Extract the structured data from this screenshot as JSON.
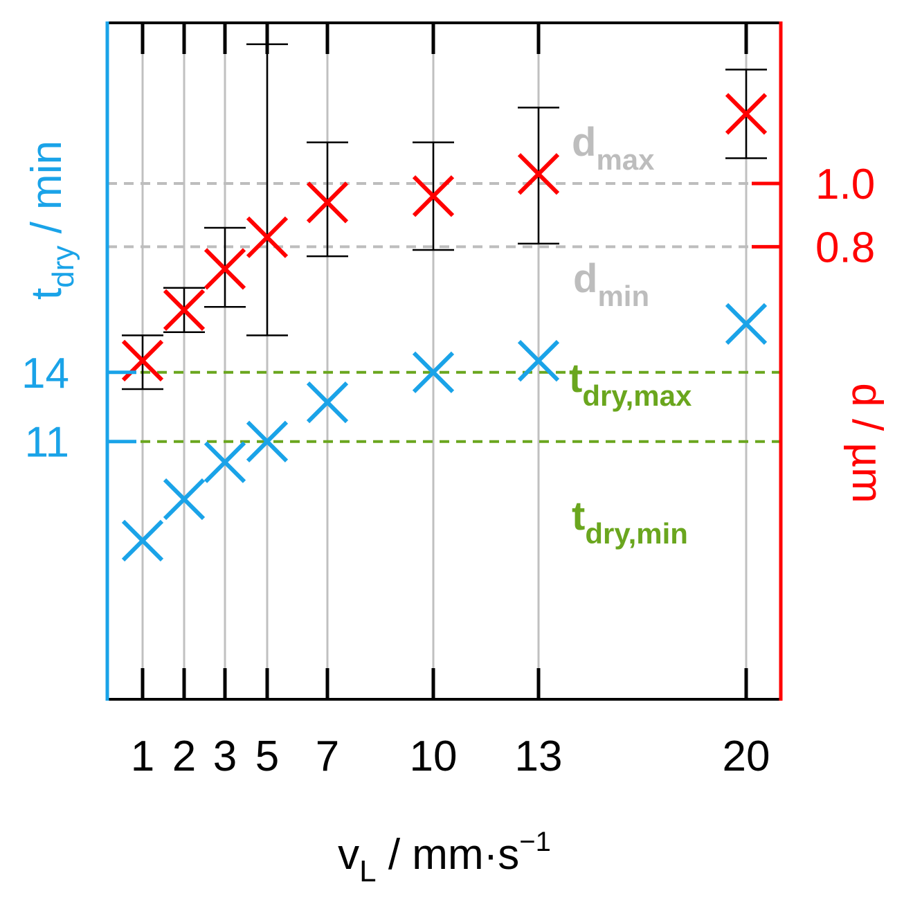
{
  "chart_data": {
    "type": "scatter",
    "title": "",
    "grid": "vertical",
    "colors": {
      "left_axis": "#1aa3e8",
      "right_axis": "#ff0000",
      "frame": "#000000",
      "grid": "#c0c0c0",
      "d_refs": "#bdbdbd",
      "t_refs": "#6aa61e"
    },
    "x_axis": {
      "label_main": "v",
      "label_sub": "L",
      "label_rest": " / mm·s",
      "label_sup": "−1",
      "ticks": [
        1,
        2,
        3,
        5,
        7,
        10,
        13,
        20
      ],
      "tick_labels": [
        "1",
        "2",
        "3",
        "5",
        "7",
        "10",
        "13",
        "20"
      ]
    },
    "left_axis": {
      "label_main": "t",
      "label_sub": "dry",
      "label_rest": " / min",
      "ticks": [
        11,
        14
      ],
      "tick_labels": [
        "11",
        "14"
      ]
    },
    "right_axis": {
      "label": "d / µm",
      "ticks": [
        0.8,
        1.0
      ],
      "tick_labels": [
        "0.8",
        "1.0"
      ]
    },
    "reference_lines": {
      "d_max": {
        "value": 1.0,
        "label_main": "d",
        "label_sub": "max"
      },
      "d_min": {
        "value": 0.8,
        "label_main": "d",
        "label_sub": "min"
      },
      "t_dry_max": {
        "value": 14,
        "label_main": "t",
        "label_sub": "dry,max"
      },
      "t_dry_min": {
        "value": 11,
        "label_main": "t",
        "label_sub": "dry,min"
      }
    },
    "series": [
      {
        "axis": "left",
        "marker": "x",
        "color": "#1aa3e8",
        "points": [
          {
            "x": 1,
            "y": 6.7
          },
          {
            "x": 2,
            "y": 8.5
          },
          {
            "x": 3,
            "y": 10.1
          },
          {
            "x": 5,
            "y": 11.0
          },
          {
            "x": 7,
            "y": 12.7
          },
          {
            "x": 10,
            "y": 14.0
          },
          {
            "x": 13,
            "y": 14.5
          },
          {
            "x": 20,
            "y": 16.1
          }
        ]
      },
      {
        "axis": "right",
        "marker": "x",
        "color": "#ff0000",
        "points": [
          {
            "x": 1,
            "y": 0.44,
            "err_low": 0.35,
            "err_high": 0.52
          },
          {
            "x": 2,
            "y": 0.6,
            "err_low": 0.53,
            "err_high": 0.67
          },
          {
            "x": 3,
            "y": 0.73,
            "err_low": 0.61,
            "err_high": 0.86
          },
          {
            "x": 5,
            "y": 0.83,
            "err_low": 0.52,
            "err_high": 1.44
          },
          {
            "x": 7,
            "y": 0.94,
            "err_low": 0.77,
            "err_high": 1.13
          },
          {
            "x": 10,
            "y": 0.96,
            "err_low": 0.79,
            "err_high": 1.13
          },
          {
            "x": 13,
            "y": 1.03,
            "err_low": 0.81,
            "err_high": 1.24
          },
          {
            "x": 20,
            "y": 1.22,
            "err_low": 1.08,
            "err_high": 1.36
          }
        ]
      }
    ]
  }
}
